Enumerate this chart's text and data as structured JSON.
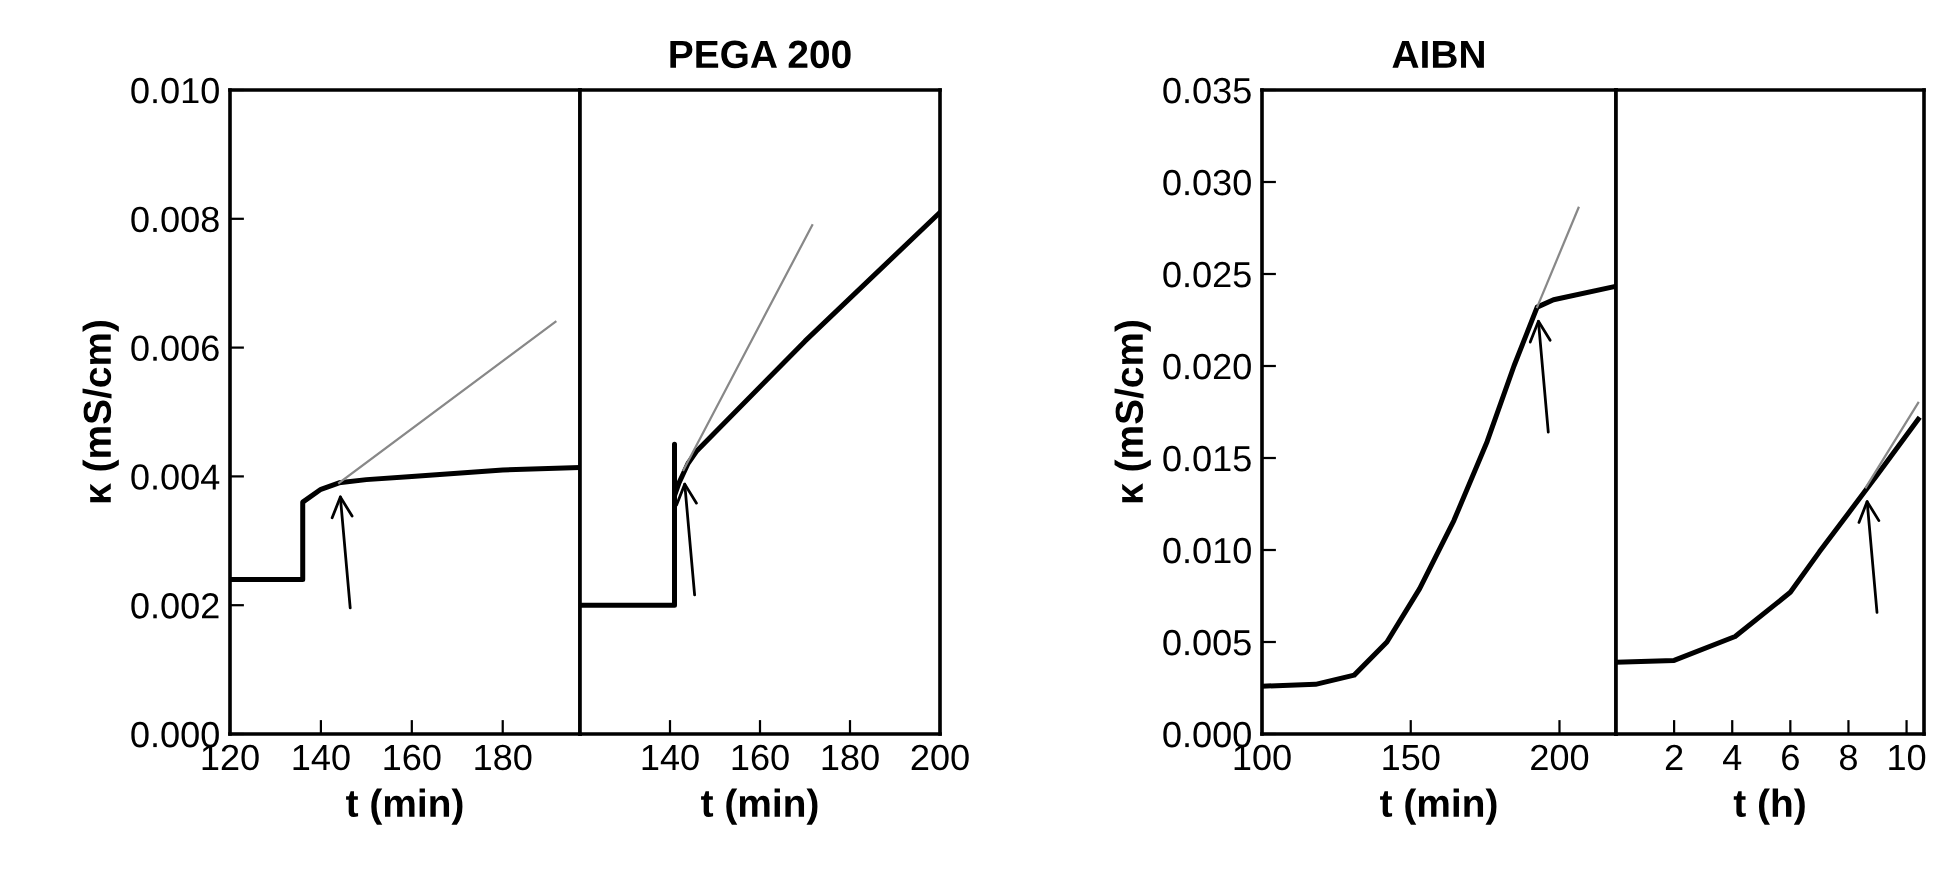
{
  "chart_data": [
    {
      "type": "line",
      "xlabel": "t (min)",
      "ylabel": "κ (mS/cm)",
      "xlim": [
        120,
        197
      ],
      "xticks": [
        120,
        140,
        160,
        180
      ],
      "ylim": [
        0,
        0.01
      ],
      "yticks": [
        {
          "value": 0,
          "label": "0.000"
        },
        {
          "value": 0.002,
          "label": "0.002"
        },
        {
          "value": 0.004,
          "label": "0.004"
        },
        {
          "value": 0.006,
          "label": "0.006"
        },
        {
          "value": 0.008,
          "label": "0.008"
        },
        {
          "value": 0.01,
          "label": "0.010"
        }
      ],
      "grid": false,
      "legend": false,
      "series": [
        {
          "color": "#000000",
          "x": [
            120,
            136,
            136,
            140,
            144,
            150,
            160,
            180,
            197
          ],
          "values": [
            0.0024,
            0.0024,
            0.0036,
            0.0038,
            0.0039,
            0.00395,
            0.004,
            0.0041,
            0.00414
          ]
        },
        {
          "color": "#888888",
          "x": [
            144,
            191.6
          ],
          "values": [
            0.0039,
            0.0064
          ]
        }
      ]
    },
    {
      "type": "line",
      "title": "PEGA 200",
      "xlabel": "t (min)",
      "xlim": [
        120,
        200
      ],
      "xticks": [
        140,
        160,
        180,
        200
      ],
      "ylim": [
        0,
        0.01
      ],
      "tick_labels": "x",
      "grid": false,
      "legend": false,
      "series": [
        {
          "color": "#000000",
          "x": [
            120,
            141,
            141,
            141,
            142,
            144,
            146,
            170,
            200
          ],
          "values": [
            0.002,
            0.002,
            0.0045,
            0.0037,
            0.0039,
            0.0042,
            0.0044,
            0.0061,
            0.0081
          ]
        },
        {
          "color": "#888888",
          "x": [
            143,
            171.6
          ],
          "values": [
            0.0041,
            0.0079
          ]
        }
      ]
    },
    {
      "type": "line",
      "title": "AIBN",
      "xlabel": "t (min)",
      "ylabel": "κ (mS/cm)",
      "xlim": [
        100,
        219
      ],
      "xticks": [
        100,
        150,
        200
      ],
      "ylim": [
        0,
        0.035
      ],
      "yticks": [
        {
          "value": 0,
          "label": "0.000"
        },
        {
          "value": 0.005,
          "label": "0.005"
        },
        {
          "value": 0.01,
          "label": "0.010"
        },
        {
          "value": 0.015,
          "label": "0.015"
        },
        {
          "value": 0.02,
          "label": "0.020"
        },
        {
          "value": 0.025,
          "label": "0.025"
        },
        {
          "value": 0.03,
          "label": "0.030"
        },
        {
          "value": 0.035,
          "label": "0.035"
        }
      ],
      "grid": false,
      "legend": false,
      "series": [
        {
          "color": "#000000",
          "x": [
            100,
            118,
            131,
            142,
            153,
            164.5,
            175.7,
            184.7,
            192.5,
            198,
            218
          ],
          "values": [
            0.0026,
            0.0027,
            0.0032,
            0.005,
            0.0079,
            0.0116,
            0.0159,
            0.02,
            0.0232,
            0.0236,
            0.0243
          ]
        },
        {
          "color": "#888888",
          "x": [
            192.5,
            206.4
          ],
          "values": [
            0.0232,
            0.0286
          ]
        }
      ]
    },
    {
      "type": "line",
      "xlabel": "t (h)",
      "xlim": [
        0,
        10.6
      ],
      "xticks": [
        2,
        4,
        6,
        8,
        10
      ],
      "ylim": [
        0,
        0.035
      ],
      "tick_labels": "x",
      "grid": false,
      "legend": false,
      "series": [
        {
          "color": "#000000",
          "x": [
            0,
            2,
            4.1,
            6,
            7,
            8,
            9,
            10.4
          ],
          "values": [
            0.0039,
            0.004,
            0.0053,
            0.0077,
            0.0099,
            0.012,
            0.0141,
            0.0171
          ]
        },
        {
          "color": "#888888",
          "x": [
            8.6,
            10.4
          ],
          "values": [
            0.0134,
            0.018
          ]
        }
      ]
    }
  ]
}
